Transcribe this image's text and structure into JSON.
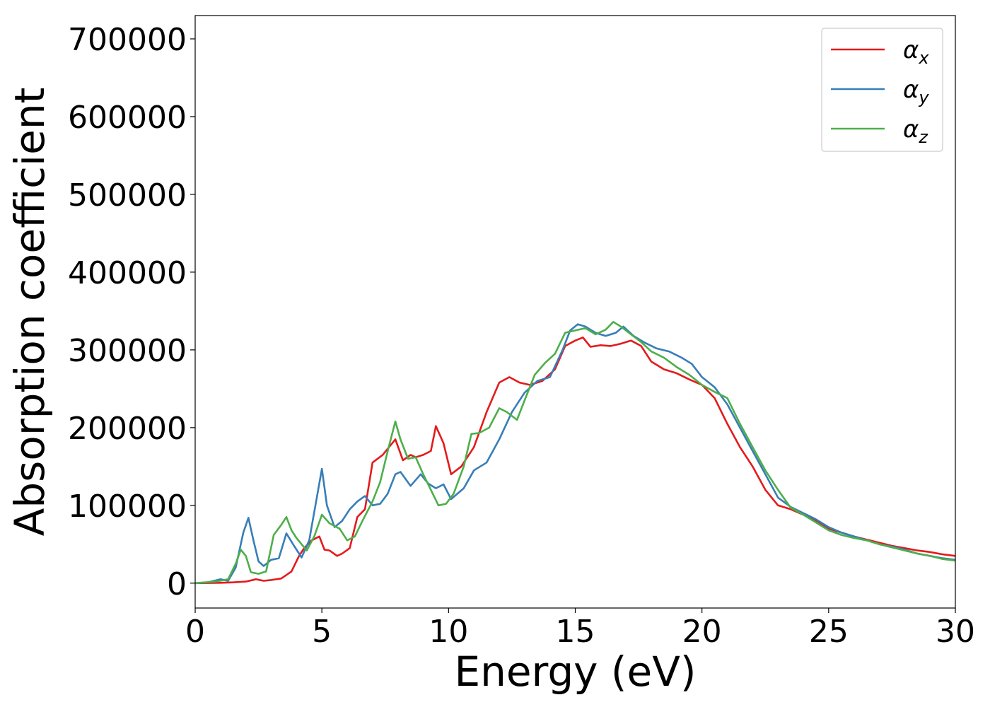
{
  "chart_data": {
    "type": "line",
    "title": "",
    "xlabel": "Energy (eV)",
    "ylabel": "Absorption coefficient",
    "xlim": [
      0,
      30
    ],
    "ylim": [
      -32000,
      730000
    ],
    "xticks": [
      0,
      5,
      10,
      15,
      20,
      25,
      30
    ],
    "xtick_labels": [
      "0",
      "5",
      "10",
      "15",
      "20",
      "25",
      "30"
    ],
    "yticks": [
      0,
      100000,
      200000,
      300000,
      400000,
      500000,
      600000,
      700000
    ],
    "ytick_labels": [
      "0",
      "100000",
      "200000",
      "300000",
      "400000",
      "500000",
      "600000",
      "700000"
    ],
    "grid": false,
    "legend_position": "top-right",
    "series": [
      {
        "name": "α",
        "name_sub": "x",
        "color": "#e41a1c",
        "x": [
          0,
          1,
          1.5,
          2,
          2.4,
          2.7,
          3,
          3.4,
          3.8,
          4.1,
          4.3,
          4.6,
          4.9,
          5.1,
          5.3,
          5.6,
          5.8,
          6.1,
          6.4,
          6.7,
          7.0,
          7.4,
          7.9,
          8.2,
          8.5,
          8.7,
          9.0,
          9.3,
          9.5,
          9.8,
          10.1,
          10.5,
          11.0,
          11.5,
          12.0,
          12.4,
          12.8,
          13.2,
          13.7,
          14.2,
          14.6,
          15.0,
          15.3,
          15.6,
          16.0,
          16.4,
          16.8,
          17.2,
          17.6,
          18.0,
          18.5,
          19.0,
          19.5,
          20.0,
          20.5,
          21.0,
          21.5,
          22.0,
          22.5,
          23.0,
          23.5,
          24.0,
          24.5,
          25.0,
          25.5,
          26.0,
          26.5,
          27.0,
          27.5,
          28.0,
          28.5,
          29.0,
          29.5,
          30.0
        ],
        "y": [
          0,
          500,
          1000,
          2000,
          5000,
          3000,
          4000,
          6000,
          15000,
          35000,
          45000,
          55000,
          60000,
          43000,
          42000,
          35000,
          38000,
          45000,
          85000,
          95000,
          155000,
          165000,
          185000,
          158000,
          165000,
          162000,
          165000,
          170000,
          202000,
          180000,
          140000,
          150000,
          175000,
          220000,
          258000,
          265000,
          258000,
          255000,
          260000,
          275000,
          305000,
          312000,
          316000,
          304000,
          306000,
          305000,
          308000,
          312000,
          305000,
          285000,
          275000,
          270000,
          262000,
          255000,
          238000,
          205000,
          175000,
          150000,
          120000,
          100000,
          95000,
          88000,
          80000,
          70000,
          65000,
          60000,
          56000,
          52000,
          48000,
          45000,
          42000,
          40000,
          37000,
          35000
        ]
      },
      {
        "name": "α",
        "name_sub": "y",
        "color": "#377eb8",
        "x": [
          0,
          0.5,
          1.0,
          1.3,
          1.6,
          1.9,
          2.1,
          2.3,
          2.5,
          2.7,
          3.0,
          3.3,
          3.6,
          3.9,
          4.2,
          4.5,
          4.8,
          5.0,
          5.2,
          5.5,
          5.8,
          6.1,
          6.4,
          6.7,
          7.0,
          7.3,
          7.6,
          7.9,
          8.1,
          8.5,
          8.9,
          9.2,
          9.5,
          9.8,
          10.1,
          10.6,
          11.0,
          11.5,
          12.0,
          12.5,
          13.0,
          13.5,
          14.0,
          14.5,
          14.8,
          15.1,
          15.4,
          15.8,
          16.2,
          16.6,
          16.9,
          17.3,
          17.7,
          18.2,
          18.7,
          19.2,
          19.6,
          20.0,
          20.5,
          21.0,
          21.5,
          22.0,
          22.5,
          23.0,
          23.5,
          24.0,
          24.5,
          25.0,
          25.5,
          26.0,
          26.5,
          27.0,
          27.5,
          28.0,
          28.5,
          29.0,
          29.5,
          30.0
        ],
        "y": [
          0,
          1000,
          5000,
          3000,
          20000,
          65000,
          84000,
          55000,
          28000,
          22000,
          30000,
          32000,
          64000,
          48000,
          33000,
          55000,
          110000,
          147000,
          100000,
          72000,
          80000,
          95000,
          105000,
          112000,
          100000,
          102000,
          115000,
          140000,
          143000,
          125000,
          140000,
          128000,
          122000,
          127000,
          108000,
          122000,
          145000,
          155000,
          185000,
          220000,
          245000,
          260000,
          265000,
          300000,
          325000,
          333000,
          330000,
          322000,
          318000,
          322000,
          330000,
          318000,
          310000,
          302000,
          298000,
          290000,
          282000,
          265000,
          252000,
          230000,
          200000,
          170000,
          140000,
          110000,
          98000,
          90000,
          82000,
          72000,
          65000,
          60000,
          55000,
          50000,
          47000,
          43000,
          38000,
          35000,
          32000,
          30000
        ]
      },
      {
        "name": "α",
        "name_sub": "z",
        "color": "#4daf4a",
        "x": [
          0,
          0.8,
          1.3,
          1.6,
          1.8,
          2.0,
          2.2,
          2.5,
          2.8,
          3.1,
          3.4,
          3.6,
          3.8,
          4.0,
          4.2,
          4.4,
          4.7,
          5.0,
          5.3,
          5.7,
          6.0,
          6.3,
          6.6,
          7.0,
          7.3,
          7.6,
          7.9,
          8.1,
          8.4,
          8.7,
          9.0,
          9.3,
          9.6,
          9.9,
          10.2,
          10.6,
          10.9,
          11.2,
          11.6,
          12.0,
          12.3,
          12.7,
          13.0,
          13.4,
          13.8,
          14.2,
          14.6,
          15.0,
          15.4,
          15.8,
          16.2,
          16.5,
          16.8,
          17.2,
          17.6,
          18.0,
          18.5,
          19.0,
          19.5,
          20.0,
          20.5,
          21.0,
          21.5,
          22.0,
          22.5,
          23.0,
          23.5,
          24.0,
          24.5,
          25.0,
          25.5,
          26.0,
          26.5,
          27.0,
          27.5,
          28.0,
          28.5,
          29.0,
          29.5,
          30.0
        ],
        "y": [
          0,
          2000,
          5000,
          25000,
          43000,
          35000,
          14000,
          12000,
          15000,
          62000,
          75000,
          85000,
          68000,
          58000,
          50000,
          42000,
          60000,
          88000,
          77000,
          70000,
          55000,
          60000,
          80000,
          105000,
          130000,
          170000,
          208000,
          185000,
          160000,
          162000,
          140000,
          120000,
          100000,
          102000,
          115000,
          150000,
          192000,
          193000,
          200000,
          225000,
          220000,
          210000,
          235000,
          268000,
          283000,
          295000,
          322000,
          325000,
          328000,
          320000,
          326000,
          336000,
          330000,
          320000,
          310000,
          298000,
          290000,
          278000,
          268000,
          255000,
          246000,
          238000,
          205000,
          175000,
          145000,
          120000,
          97000,
          88000,
          78000,
          68000,
          62000,
          58000,
          55000,
          50000,
          46000,
          42000,
          38000,
          35000,
          31000,
          29000
        ]
      }
    ]
  }
}
